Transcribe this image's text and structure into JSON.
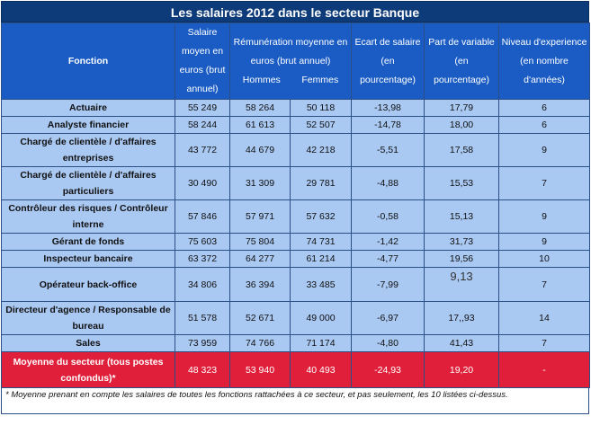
{
  "title": "Les salaires 2012 dans le secteur Banque",
  "headers": {
    "fonction": "Fonction",
    "salaire_moyen": "Salaire moyen en euros (brut annuel)",
    "remuneration": "Rémunération moyenne en euros (brut annuel)",
    "hommes": "Hommes",
    "femmes": "Femmes",
    "ecart": "Ecart de salaire (en pourcentage)",
    "variable": "Part de variable (en pourcentage)",
    "experience": "Niveau d'experience (en nombre d'années)"
  },
  "rows": [
    {
      "fonction": "Actuaire",
      "salaire": "55 249",
      "hommes": "58 264",
      "femmes": "50 118",
      "ecart": "-13,98",
      "variable": "17,79",
      "experience": "6"
    },
    {
      "fonction": "Analyste financier",
      "salaire": "58 244",
      "hommes": "61 613",
      "femmes": "52 507",
      "ecart": "-14,78",
      "variable": "18,00",
      "experience": "6"
    },
    {
      "fonction": "Chargé de clientèle / d'affaires entreprises",
      "salaire": "43 772",
      "hommes": "44 679",
      "femmes": "42 218",
      "ecart": "-5,51",
      "variable": "17,58",
      "experience": "9"
    },
    {
      "fonction": "Chargé de clientèle / d'affaires particuliers",
      "salaire": "30 490",
      "hommes": "31 309",
      "femmes": "29 781",
      "ecart": "-4,88",
      "variable": "15,53",
      "experience": "7"
    },
    {
      "fonction": "Contrôleur des risques / Contrôleur interne",
      "salaire": "57 846",
      "hommes": "57 971",
      "femmes": "57 632",
      "ecart": "-0,58",
      "variable": "15,13",
      "experience": "9"
    },
    {
      "fonction": "Gérant de fonds",
      "salaire": "75 603",
      "hommes": "75 804",
      "femmes": "74 731",
      "ecart": "-1,42",
      "variable": "31,73",
      "experience": "9"
    },
    {
      "fonction": "Inspecteur bancaire",
      "salaire": "63 372",
      "hommes": "64 277",
      "femmes": "61 214",
      "ecart": "-4,77",
      "variable": "19,56",
      "experience": "10"
    },
    {
      "fonction": "Opérateur back-office",
      "salaire": "34 806",
      "hommes": "36 394",
      "femmes": "33 485",
      "ecart": "-7,99",
      "variable": "9,13",
      "experience": "7"
    },
    {
      "fonction": "Directeur d'agence / Responsable de bureau",
      "salaire": "51 578",
      "hommes": "52 671",
      "femmes": "49 000",
      "ecart": "-6,97",
      "variable": "17,,93",
      "experience": "14"
    },
    {
      "fonction": "Sales",
      "salaire": "73 959",
      "hommes": "74 766",
      "femmes": "71 174",
      "ecart": "-4,80",
      "variable": "41,43",
      "experience": "7"
    }
  ],
  "average": {
    "fonction": "Moyenne du secteur (tous postes confondus)*",
    "salaire": "48 323",
    "hommes": "53 940",
    "femmes": "40 493",
    "ecart": "-24,93",
    "variable": "19,20",
    "experience": "-"
  },
  "footnote": "* Moyenne prenant en compte les salaires de toutes les fonctions rattachées à ce secteur, et pas seulement, les 10 listées ci-dessus.",
  "colors": {
    "title_bg": "#0d3a78",
    "header_bg": "#1a5cc4",
    "row_bg": "#a9c8f2",
    "average_bg": "#e0203b"
  }
}
